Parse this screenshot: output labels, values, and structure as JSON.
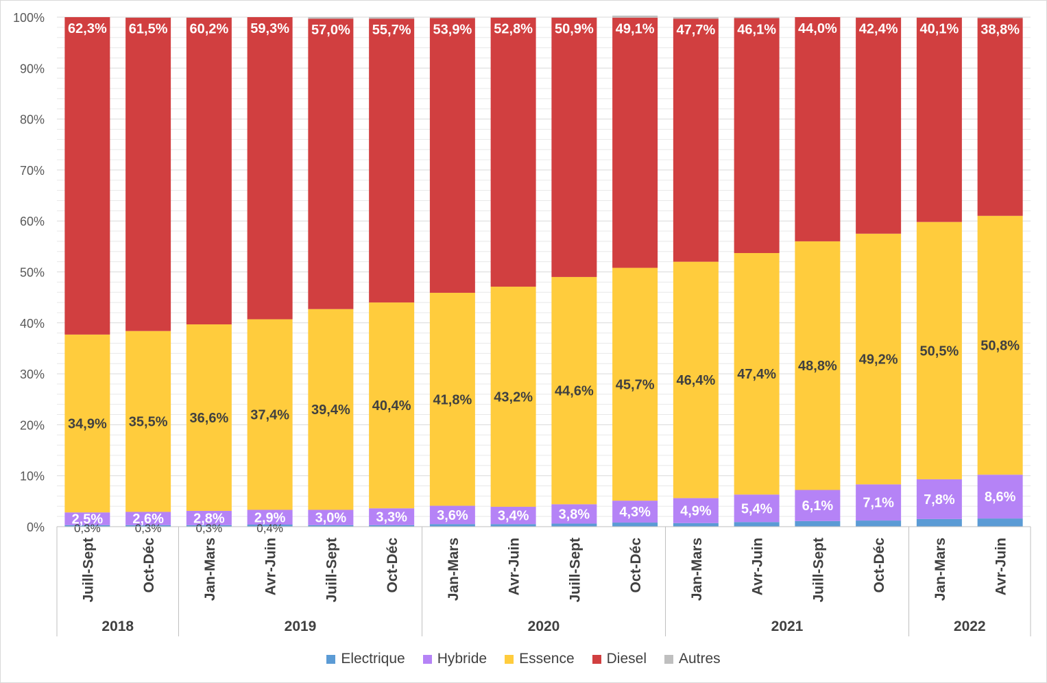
{
  "chart_data": {
    "type": "bar",
    "stacked": true,
    "ylim": [
      0,
      100
    ],
    "y_ticks": [
      "0%",
      "10%",
      "20%",
      "30%",
      "40%",
      "50%",
      "60%",
      "70%",
      "80%",
      "90%",
      "100%"
    ],
    "categories": [
      "Juill-Sept",
      "Oct-Déc",
      "Jan-Mars",
      "Avr-Juin",
      "Juill-Sept",
      "Oct-Déc",
      "Jan-Mars",
      "Avr-Juin",
      "Juill-Sept",
      "Oct-Déc",
      "Jan-Mars",
      "Avr-Juin",
      "Juill-Sept",
      "Oct-Déc",
      "Jan-Mars",
      "Avr-Juin"
    ],
    "year_groups": [
      {
        "label": "2018",
        "count": 2
      },
      {
        "label": "2019",
        "count": 4
      },
      {
        "label": "2020",
        "count": 4
      },
      {
        "label": "2021",
        "count": 4
      },
      {
        "label": "2022",
        "count": 2
      }
    ],
    "series": [
      {
        "name": "Electrique",
        "color": "#5b9bd5",
        "text_color": "#404040",
        "values": [
          0.3,
          0.3,
          0.3,
          0.4,
          0.3,
          0.3,
          0.5,
          0.5,
          0.6,
          0.8,
          0.7,
          0.9,
          1.1,
          1.2,
          1.5,
          1.6
        ],
        "labels": [
          "0,3%",
          "0,3%",
          "0,3%",
          "0,4%",
          null,
          null,
          null,
          null,
          null,
          null,
          null,
          null,
          null,
          null,
          null,
          null
        ]
      },
      {
        "name": "Hybride",
        "color": "#b583f6",
        "text_color": "#ffffff",
        "values": [
          2.5,
          2.6,
          2.8,
          2.9,
          3.0,
          3.3,
          3.6,
          3.4,
          3.8,
          4.3,
          4.9,
          5.4,
          6.1,
          7.1,
          7.8,
          8.6
        ],
        "labels": [
          "2,5%",
          "2,6%",
          "2,8%",
          "2,9%",
          "3,0%",
          "3,3%",
          "3,6%",
          "3,4%",
          "3,8%",
          "4,3%",
          "4,9%",
          "5,4%",
          "6,1%",
          "7,1%",
          "7,8%",
          "8,6%"
        ]
      },
      {
        "name": "Essence",
        "color": "#ffcc3d",
        "text_color": "#404040",
        "values": [
          34.9,
          35.5,
          36.6,
          37.4,
          39.4,
          40.4,
          41.8,
          43.2,
          44.6,
          45.7,
          46.4,
          47.4,
          48.8,
          49.2,
          50.5,
          50.8
        ],
        "labels": [
          "34,9%",
          "35,5%",
          "36,6%",
          "37,4%",
          "39,4%",
          "40,4%",
          "41,8%",
          "43,2%",
          "44,6%",
          "45,7%",
          "46,4%",
          "47,4%",
          "48,8%",
          "49,2%",
          "50,5%",
          "50,8%"
        ]
      },
      {
        "name": "Diesel",
        "color": "#d13f40",
        "text_color": "#ffffff",
        "values": [
          62.3,
          61.5,
          60.2,
          59.3,
          57.0,
          55.7,
          53.9,
          52.8,
          50.9,
          49.1,
          47.7,
          46.1,
          44.0,
          42.4,
          40.1,
          38.8
        ],
        "labels": [
          "62,3%",
          "61,5%",
          "60,2%",
          "59,3%",
          "57,0%",
          "55,7%",
          "53,9%",
          "52,8%",
          "50,9%",
          "49,1%",
          "47,7%",
          "46,1%",
          "44,0%",
          "42,4%",
          "40,1%",
          "38,8%"
        ]
      },
      {
        "name": "Autres",
        "color": "#bfbfbf",
        "text_color": "#404040",
        "values": [
          0.0,
          0.1,
          0.1,
          0.0,
          0.3,
          0.3,
          0.2,
          0.1,
          0.1,
          0.4,
          0.3,
          0.2,
          0.0,
          0.1,
          0.1,
          0.2
        ],
        "labels": []
      }
    ],
    "grid": true,
    "legend_position": "bottom"
  }
}
